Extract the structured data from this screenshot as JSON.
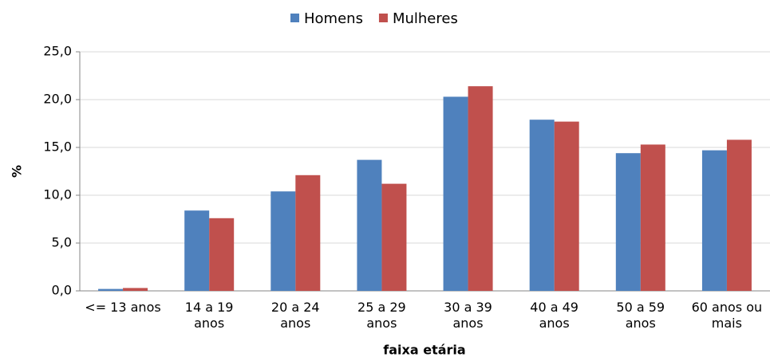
{
  "chart_data": {
    "type": "bar",
    "categories": [
      "<= 13 anos",
      "14 a 19\nanos",
      "20 a 24\nanos",
      "25 a 29\nanos",
      "30 a 39\nanos",
      "40 a 49\nanos",
      "50 a 59\nanos",
      "60 anos ou\nmais"
    ],
    "series": [
      {
        "name": "Homens",
        "color": "#4f81bd",
        "values": [
          0.2,
          8.4,
          10.4,
          13.7,
          20.3,
          17.9,
          14.4,
          14.7
        ]
      },
      {
        "name": "Mulheres",
        "color": "#c0504d",
        "values": [
          0.3,
          7.6,
          12.1,
          11.2,
          21.4,
          17.7,
          15.3,
          15.8
        ]
      }
    ],
    "ylabel": "%",
    "xlabel": "faixa etária",
    "ylim": [
      0,
      25
    ],
    "yticks": [
      {
        "value": 0,
        "label": "0,0"
      },
      {
        "value": 5,
        "label": "5,0"
      },
      {
        "value": 10,
        "label": "10,0"
      },
      {
        "value": 15,
        "label": "15,0"
      },
      {
        "value": 20,
        "label": "20,0"
      },
      {
        "value": 25,
        "label": "25,0"
      }
    ],
    "grid": true,
    "legend": "top"
  }
}
